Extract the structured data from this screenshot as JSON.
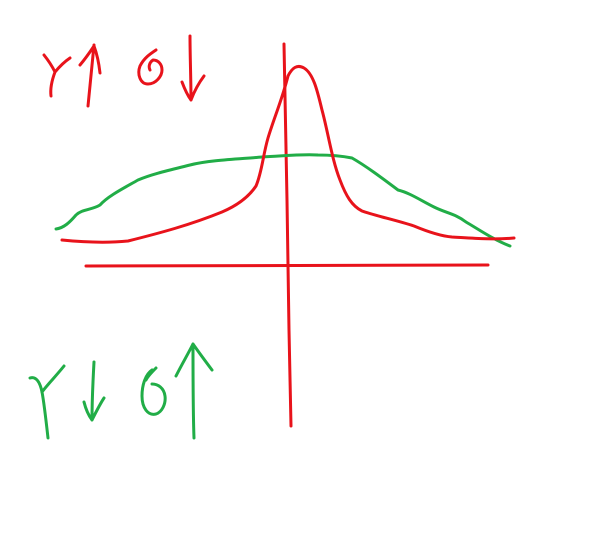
{
  "colors": {
    "background": "#ffffff",
    "red": "#e8131b",
    "green": "#21ad47"
  },
  "annotations": {
    "top_left": {
      "symbol_1": "γ",
      "arrow_1": "up",
      "symbol_2": "σ",
      "arrow_2": "down",
      "color": "red"
    },
    "bottom_left": {
      "symbol_1": "γ",
      "arrow_1": "down",
      "symbol_2": "σ",
      "arrow_2": "up",
      "color": "green"
    }
  },
  "diagram": {
    "type": "hand-drawn sketch of two distribution curves on crossed axes",
    "curves": [
      {
        "shape": "tall narrow peak",
        "color": "red"
      },
      {
        "shape": "low wide hump",
        "color": "green"
      }
    ]
  }
}
